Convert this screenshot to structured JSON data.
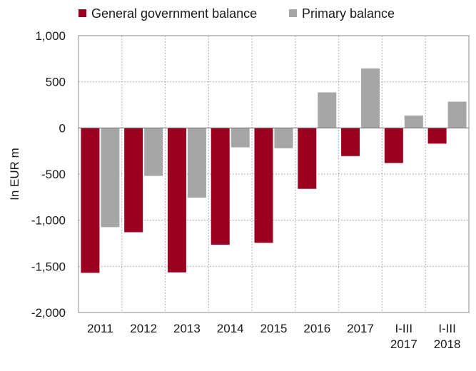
{
  "chart_data": {
    "type": "bar",
    "categories": [
      "2011",
      "2012",
      "2013",
      "2014",
      "2015",
      "2016",
      "2017",
      "I-III\n2017",
      "I-III\n2018"
    ],
    "series": [
      {
        "name": "General government balance",
        "color": "#9b0020",
        "values": [
          -1570,
          -1130,
          -1565,
          -1265,
          -1245,
          -660,
          -305,
          -380,
          -170
        ]
      },
      {
        "name": "Primary balance",
        "color": "#a6a6a6",
        "values": [
          -1075,
          -520,
          -755,
          -210,
          -220,
          385,
          645,
          135,
          285
        ]
      }
    ],
    "ylabel": "In EUR m",
    "ylim": [
      -2000,
      1000
    ],
    "yticks": [
      1000,
      500,
      0,
      -500,
      -1000,
      -1500,
      -2000
    ],
    "ytick_labels": [
      "1,000",
      "500",
      "0",
      "-500",
      "-1,000",
      "-1,500",
      "-2,000"
    ],
    "grid": "dotted",
    "legend": "top"
  }
}
